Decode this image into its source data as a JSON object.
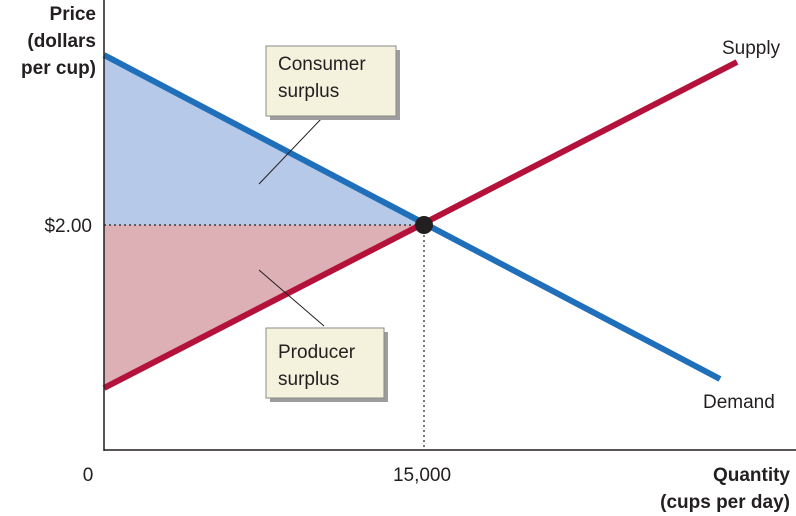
{
  "y_axis_label": [
    "Price",
    "(dollars",
    "per cup)"
  ],
  "x_axis_label": [
    "Quantity",
    "(cups per day)"
  ],
  "origin_label": "0",
  "equilibrium_price_label": "$2.00",
  "equilibrium_quantity_label": "15,000",
  "supply_label": "Supply",
  "demand_label": "Demand",
  "consumer_surplus_label": [
    "Consumer",
    "surplus"
  ],
  "producer_surplus_label": [
    "Producer",
    "surplus"
  ],
  "colors": {
    "demand": "#1f6fba",
    "supply": "#b5123b",
    "consumer_surplus_fill": "#b6c9e8",
    "producer_surplus_fill": "#dcb0b5",
    "callout_box": "#f4f1dc",
    "axis": "#231f20"
  }
}
